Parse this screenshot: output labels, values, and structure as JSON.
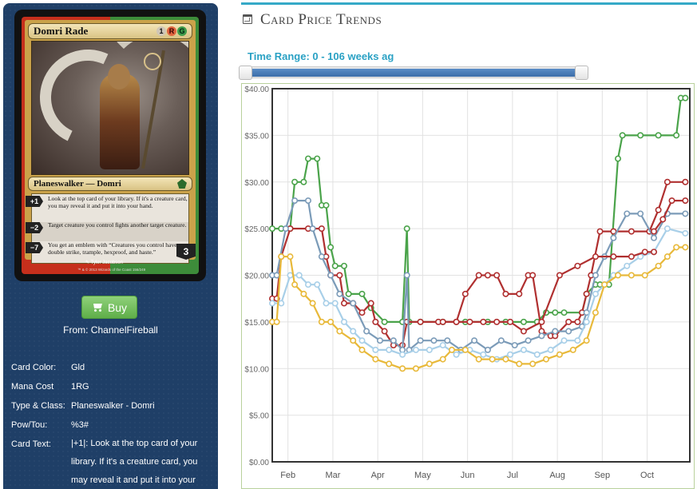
{
  "card": {
    "name": "Domri Rade",
    "mana_cost_symbols": [
      "1",
      "R",
      "G"
    ],
    "type_line": "Planeswalker — Domri",
    "abilities": [
      {
        "cost": "+1",
        "text": "Look at the top card of your library. If it's a creature card, you may reveal it and put it into your hand."
      },
      {
        "cost": "−2",
        "text": "Target creature you control fights another target creature."
      },
      {
        "cost": "−7",
        "text": "You get an emblem with “Creatures you control have double strike, trample, hexproof, and haste.”"
      }
    ],
    "loyalty": "3",
    "artist": "✎ Tyler Jacobson",
    "copyright": "™ & © 2013 Wizards of the Coast 156/249"
  },
  "buy": {
    "label": "Buy",
    "from": "From: ChannelFireball"
  },
  "details": [
    {
      "label": "Card Color:",
      "value": "Gld"
    },
    {
      "label": "Mana Cost",
      "value": "1RG"
    },
    {
      "label": "Type & Class:",
      "value": "Planeswalker - Domri"
    },
    {
      "label": "Pow/Tou:",
      "value": "%3#"
    },
    {
      "label": "Card Text:",
      "value": "|+1|: Look at the top card of your library. If it's a creature card, you may reveal it and put it into your"
    }
  ],
  "section": {
    "title": "Card Price Trends"
  },
  "time_range": {
    "label": "Time Range: 0 - 106 weeks ag"
  },
  "colors": {
    "panel": "#1f3f67",
    "accent": "#35a9c7",
    "buy_green": "#6dbb55"
  },
  "chart_data": {
    "type": "line",
    "ylim": [
      0,
      40
    ],
    "yticks": [
      "$0.00",
      "$5.00",
      "$10.00",
      "$15.00",
      "$20.00",
      "$25.00",
      "$30.00",
      "$35.00",
      "$40.00"
    ],
    "xticks": [
      "Feb",
      "Mar",
      "Apr",
      "May",
      "Jun",
      "Jul",
      "Aug",
      "Sep",
      "Oct"
    ],
    "x_range": [
      0,
      9.3
    ],
    "series": [
      {
        "color": "#4aa34a",
        "points": [
          [
            0,
            25
          ],
          [
            0.2,
            25
          ],
          [
            0.4,
            25
          ],
          [
            0.5,
            30
          ],
          [
            0.7,
            30
          ],
          [
            0.8,
            32.5
          ],
          [
            1.0,
            32.5
          ],
          [
            1.1,
            27.5
          ],
          [
            1.2,
            27.5
          ],
          [
            1.3,
            23
          ],
          [
            1.4,
            21
          ],
          [
            1.6,
            21
          ],
          [
            1.7,
            18
          ],
          [
            2.0,
            18
          ],
          [
            2.2,
            16.5
          ],
          [
            2.5,
            15
          ],
          [
            2.9,
            15
          ],
          [
            3.0,
            25
          ],
          [
            3.05,
            15
          ],
          [
            3.3,
            15
          ],
          [
            3.8,
            15
          ],
          [
            4.3,
            15
          ],
          [
            4.8,
            15
          ],
          [
            5.2,
            15
          ],
          [
            5.6,
            15
          ],
          [
            5.9,
            15
          ],
          [
            6.1,
            16
          ],
          [
            6.3,
            16
          ],
          [
            6.5,
            16
          ],
          [
            6.9,
            16
          ],
          [
            7.0,
            18
          ],
          [
            7.2,
            19
          ],
          [
            7.3,
            19
          ],
          [
            7.5,
            19
          ],
          [
            7.7,
            32.5
          ],
          [
            7.8,
            35
          ],
          [
            8.2,
            35
          ],
          [
            8.6,
            35
          ],
          [
            9.0,
            35
          ],
          [
            9.1,
            39
          ],
          [
            9.2,
            39
          ]
        ]
      },
      {
        "color": "#b03030",
        "points": [
          [
            0,
            17.5
          ],
          [
            0.1,
            17.5
          ],
          [
            0.2,
            22
          ],
          [
            0.4,
            25
          ],
          [
            0.8,
            25
          ],
          [
            1.1,
            25
          ],
          [
            1.2,
            22
          ],
          [
            1.3,
            20
          ],
          [
            1.5,
            20
          ],
          [
            1.6,
            17
          ],
          [
            1.8,
            17
          ],
          [
            2.0,
            16
          ],
          [
            2.2,
            17
          ],
          [
            2.3,
            15
          ],
          [
            2.5,
            14
          ],
          [
            2.7,
            12.5
          ],
          [
            2.9,
            12.5
          ],
          [
            3.0,
            15
          ],
          [
            3.3,
            15
          ],
          [
            3.7,
            15
          ],
          [
            4.1,
            15
          ],
          [
            4.3,
            18
          ],
          [
            4.6,
            20
          ],
          [
            4.8,
            20
          ],
          [
            5.0,
            20
          ],
          [
            5.2,
            18
          ],
          [
            5.5,
            18
          ],
          [
            5.7,
            20
          ],
          [
            5.8,
            20
          ],
          [
            6.0,
            14
          ],
          [
            6.2,
            13.5
          ],
          [
            6.3,
            13.5
          ],
          [
            6.6,
            15
          ],
          [
            6.8,
            15
          ],
          [
            6.9,
            16
          ],
          [
            7.0,
            18
          ],
          [
            7.1,
            20
          ],
          [
            7.3,
            24.7
          ],
          [
            7.6,
            24.7
          ],
          [
            8.0,
            24.7
          ],
          [
            8.4,
            24.7
          ],
          [
            8.6,
            27
          ],
          [
            8.8,
            30
          ],
          [
            9.2,
            30
          ]
        ]
      },
      {
        "color": "#7b9bb8",
        "points": [
          [
            0,
            20
          ],
          [
            0.1,
            20
          ],
          [
            0.3,
            25
          ],
          [
            0.5,
            28
          ],
          [
            0.8,
            28
          ],
          [
            0.9,
            25
          ],
          [
            1.1,
            22
          ],
          [
            1.3,
            20
          ],
          [
            1.5,
            18
          ],
          [
            1.8,
            17
          ],
          [
            2.1,
            14
          ],
          [
            2.4,
            13
          ],
          [
            2.7,
            13
          ],
          [
            2.9,
            12
          ],
          [
            3.0,
            20
          ],
          [
            3.05,
            12
          ],
          [
            3.3,
            13
          ],
          [
            3.6,
            13
          ],
          [
            3.9,
            13
          ],
          [
            4.2,
            12
          ],
          [
            4.5,
            13
          ],
          [
            4.8,
            12
          ],
          [
            5.1,
            13
          ],
          [
            5.4,
            12.5
          ],
          [
            5.7,
            13
          ],
          [
            6.0,
            13.5
          ],
          [
            6.3,
            14
          ],
          [
            6.6,
            14
          ],
          [
            6.9,
            14.5
          ],
          [
            7.0,
            16
          ],
          [
            7.2,
            20
          ],
          [
            7.4,
            22
          ],
          [
            7.6,
            24
          ],
          [
            7.9,
            26.6
          ],
          [
            8.2,
            26.6
          ],
          [
            8.5,
            24
          ],
          [
            8.8,
            26.6
          ],
          [
            9.2,
            26.6
          ]
        ]
      },
      {
        "color": "#a8cfe8",
        "points": [
          [
            0,
            17
          ],
          [
            0.2,
            17
          ],
          [
            0.4,
            20
          ],
          [
            0.6,
            20
          ],
          [
            0.8,
            19
          ],
          [
            1.0,
            19
          ],
          [
            1.2,
            17
          ],
          [
            1.4,
            17
          ],
          [
            1.6,
            15
          ],
          [
            1.8,
            14
          ],
          [
            2.0,
            13
          ],
          [
            2.3,
            12
          ],
          [
            2.6,
            12
          ],
          [
            2.9,
            11.5
          ],
          [
            3.2,
            12
          ],
          [
            3.5,
            12
          ],
          [
            3.8,
            12.5
          ],
          [
            4.1,
            11.5
          ],
          [
            4.4,
            12
          ],
          [
            4.7,
            11.5
          ],
          [
            5.0,
            11
          ],
          [
            5.3,
            11.5
          ],
          [
            5.6,
            12
          ],
          [
            5.9,
            11.5
          ],
          [
            6.2,
            12
          ],
          [
            6.5,
            13
          ],
          [
            6.8,
            13
          ],
          [
            7.0,
            15
          ],
          [
            7.2,
            18
          ],
          [
            7.4,
            19
          ],
          [
            7.6,
            20
          ],
          [
            7.9,
            21
          ],
          [
            8.2,
            22
          ],
          [
            8.5,
            22.5
          ],
          [
            8.8,
            25
          ],
          [
            9.2,
            24.5
          ]
        ]
      },
      {
        "color": "#e8b93a",
        "points": [
          [
            0,
            15
          ],
          [
            0.1,
            15
          ],
          [
            0.2,
            22
          ],
          [
            0.4,
            22
          ],
          [
            0.5,
            19
          ],
          [
            0.7,
            18
          ],
          [
            0.9,
            17
          ],
          [
            1.1,
            15
          ],
          [
            1.3,
            15
          ],
          [
            1.5,
            14
          ],
          [
            1.8,
            13
          ],
          [
            2.0,
            12
          ],
          [
            2.3,
            11
          ],
          [
            2.6,
            10.5
          ],
          [
            2.9,
            10
          ],
          [
            3.2,
            10
          ],
          [
            3.5,
            10.5
          ],
          [
            3.8,
            11
          ],
          [
            4.0,
            12
          ],
          [
            4.3,
            12
          ],
          [
            4.6,
            11
          ],
          [
            4.9,
            11
          ],
          [
            5.2,
            11
          ],
          [
            5.5,
            10.5
          ],
          [
            5.8,
            10.5
          ],
          [
            6.1,
            11
          ],
          [
            6.4,
            11.5
          ],
          [
            6.7,
            12
          ],
          [
            7.0,
            13
          ],
          [
            7.2,
            16
          ],
          [
            7.4,
            19
          ],
          [
            7.7,
            20
          ],
          [
            8.0,
            20
          ],
          [
            8.3,
            20
          ],
          [
            8.6,
            21
          ],
          [
            8.8,
            22
          ],
          [
            9.0,
            23
          ],
          [
            9.2,
            23
          ]
        ]
      },
      {
        "color": "#b03030",
        "points": [
          [
            3.8,
            15
          ],
          [
            4.1,
            15
          ],
          [
            4.4,
            15
          ],
          [
            4.7,
            15
          ],
          [
            5.0,
            15
          ],
          [
            5.3,
            15
          ],
          [
            5.6,
            14
          ],
          [
            6.0,
            15
          ],
          [
            6.4,
            20
          ],
          [
            6.8,
            21
          ],
          [
            7.2,
            22
          ],
          [
            7.6,
            22
          ],
          [
            8.0,
            22
          ],
          [
            8.3,
            22.5
          ],
          [
            8.5,
            22.5
          ]
        ]
      },
      {
        "color": "#b03030",
        "points": [
          [
            8.5,
            24.7
          ],
          [
            8.7,
            26
          ],
          [
            8.9,
            28
          ],
          [
            9.2,
            28
          ]
        ]
      }
    ]
  }
}
